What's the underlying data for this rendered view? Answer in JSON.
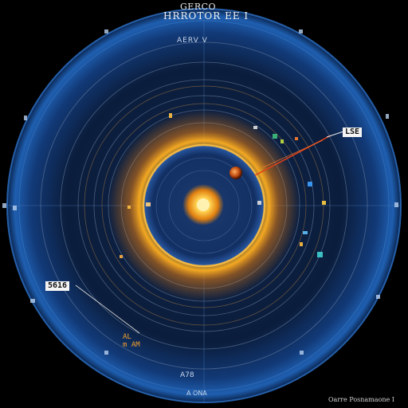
{
  "header": {
    "top_text": "GERCO",
    "main_text": "HRROTOR EE I",
    "sub_text": "AERV V"
  },
  "tags": {
    "right_tag": "LSE",
    "left_tag": "5616"
  },
  "marker_label": "AL\nm AM",
  "bottom": {
    "label_a": "A78",
    "label_b": "A ONA"
  },
  "footer_text": "Oarre Posnamaone I",
  "colors": {
    "background": "#000000",
    "ring_blue": "#1a4f9a",
    "glow_orange": "#ffb020",
    "core_yellow": "#ffe07a",
    "pointer_red": "#e0401a"
  }
}
